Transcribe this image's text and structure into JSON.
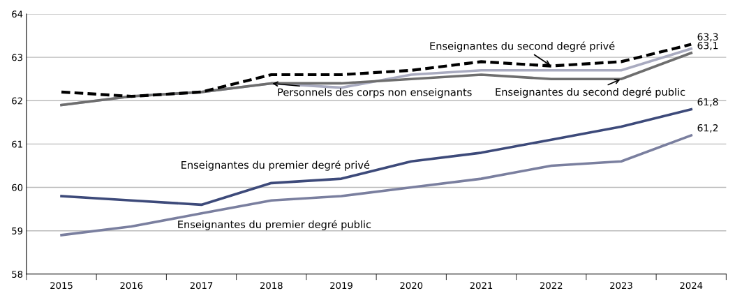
{
  "chart_data": {
    "type": "line",
    "categories": [
      "2015",
      "2016",
      "2017",
      "2018",
      "2019",
      "2020",
      "2021",
      "2022",
      "2023",
      "2024"
    ],
    "ylim": [
      58,
      64
    ],
    "yticks": [
      58,
      59,
      60,
      61,
      62,
      63,
      64
    ],
    "grid": "y",
    "legend": false,
    "marker": "none",
    "series": [
      {
        "color": "#7a7f9f",
        "line_style": "solid",
        "values": [
          58.9,
          59.1,
          59.4,
          59.7,
          59.8,
          60.0,
          60.2,
          60.5,
          60.6,
          61.2
        ],
        "value_labels": [
          null,
          null,
          null,
          null,
          null,
          null,
          null,
          null,
          null,
          "61,2"
        ]
      },
      {
        "color": "#3d4a7a",
        "line_style": "solid",
        "values": [
          59.8,
          59.7,
          59.6,
          60.1,
          60.2,
          60.6,
          60.8,
          61.1,
          61.4,
          61.8
        ],
        "value_labels": [
          null,
          null,
          null,
          null,
          null,
          null,
          null,
          null,
          null,
          "61,8"
        ]
      },
      {
        "color": "#a9abc0",
        "line_style": "solid",
        "values": [
          61.9,
          62.1,
          62.2,
          62.4,
          62.3,
          62.6,
          62.7,
          62.7,
          62.7,
          63.2
        ]
      },
      {
        "color": "#6e6e6e",
        "line_style": "solid",
        "values": [
          61.9,
          62.1,
          62.2,
          62.4,
          62.4,
          62.5,
          62.6,
          62.5,
          62.5,
          63.1
        ],
        "value_labels": [
          null,
          null,
          null,
          null,
          null,
          null,
          null,
          null,
          null,
          "63,1"
        ]
      },
      {
        "color": "#000000",
        "line_style": "dashed",
        "values": [
          62.2,
          62.1,
          62.2,
          62.6,
          62.6,
          62.7,
          62.9,
          62.8,
          62.9,
          63.3
        ],
        "value_labels": [
          null,
          null,
          null,
          null,
          null,
          null,
          null,
          null,
          null,
          "63,3"
        ]
      }
    ],
    "annotations": [
      {
        "text": "Enseignantes du premier degré public",
        "x": "2017",
        "y": 59.4
      },
      {
        "text": "Enseignantes du premier degré privé",
        "x": "2018",
        "y": 60.1
      },
      {
        "text": "Personnels des corps non enseignants",
        "x": "2018",
        "y": 62.4
      },
      {
        "text": "Enseignantes du second degré public",
        "x": "2023",
        "y": 62.5
      },
      {
        "text": "Enseignantes du second degré privé",
        "x": "2022",
        "y": 62.8
      }
    ]
  }
}
